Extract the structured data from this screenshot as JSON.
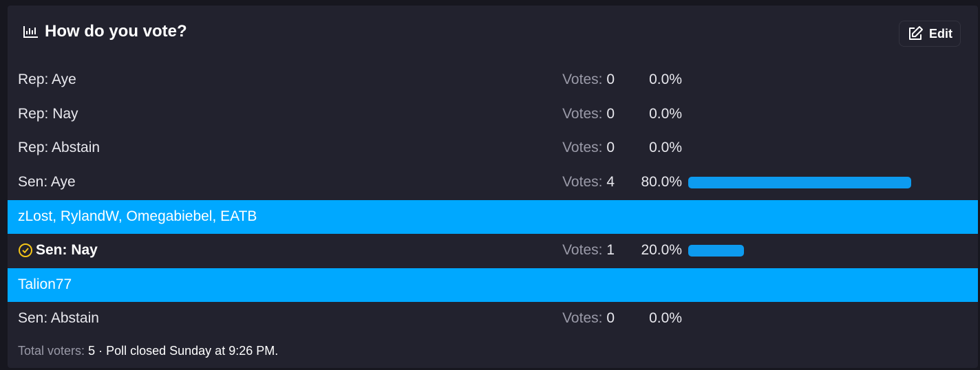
{
  "header": {
    "title": "How do you vote?",
    "edit": "Edit"
  },
  "votes_label": "Votes:",
  "options": [
    {
      "label": "Rep: Aye",
      "votes": 0,
      "percent": 0,
      "percent_label": "0.0%"
    },
    {
      "label": "Rep: Nay",
      "votes": 0,
      "percent": 0,
      "percent_label": "0.0%"
    },
    {
      "label": "Rep: Abstain",
      "votes": 0,
      "percent": 0,
      "percent_label": "0.0%"
    },
    {
      "label": "Sen: Aye",
      "votes": 4,
      "percent": 80,
      "percent_label": "80.0%",
      "voters": "zLost, RylandW, Omegabiebel, EATB"
    },
    {
      "label": "Sen: Nay",
      "votes": 1,
      "percent": 20,
      "percent_label": "20.0%",
      "voters": "Talion77",
      "selected": true
    },
    {
      "label": "Sen: Abstain",
      "votes": 0,
      "percent": 0,
      "percent_label": "0.0%"
    }
  ],
  "footer": {
    "total_label": "Total voters:",
    "total": 5,
    "closed": "· Poll closed Sunday at 9:26 PM."
  }
}
